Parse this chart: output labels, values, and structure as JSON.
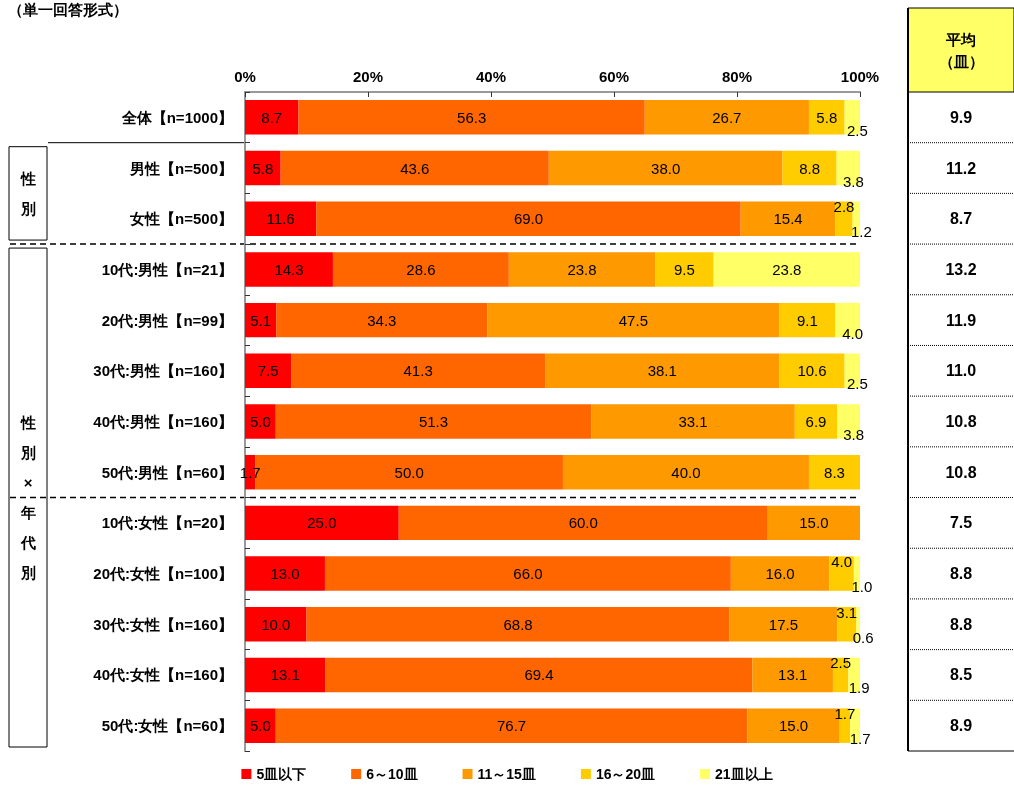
{
  "chart_data": {
    "type": "bar",
    "orientation": "horizontal",
    "stacked": true,
    "grid": false,
    "legend": "bottom",
    "subtitle": "（単一回答形式）",
    "categories": [
      "全体【n=1000】",
      "男性【n=500】",
      "女性【n=500】",
      "10代:男性【n=21】",
      "20代:男性【n=99】",
      "30代:男性【n=160】",
      "40代:男性【n=160】",
      "50代:男性【n=60】",
      "10代:女性【n=20】",
      "20代:女性【n=100】",
      "30代:女性【n=160】",
      "40代:女性【n=160】",
      "50代:女性【n=60】"
    ],
    "xlim": [
      0,
      100
    ],
    "xticks": [
      {
        "value": 0,
        "label": "0%"
      },
      {
        "value": 20,
        "label": "20%"
      },
      {
        "value": 40,
        "label": "40%"
      },
      {
        "value": 60,
        "label": "60%"
      },
      {
        "value": 80,
        "label": "80%"
      },
      {
        "value": 100,
        "label": "100%"
      }
    ],
    "series": [
      {
        "name": "5皿以下",
        "color": "#ff0000",
        "values": [
          8.7,
          5.8,
          11.6,
          14.3,
          5.1,
          7.5,
          5.0,
          1.7,
          25.0,
          13.0,
          10.0,
          13.1,
          5.0
        ],
        "value_labels": [
          "8.7",
          "5.8",
          "11.6",
          "14.3",
          "5.1",
          "7.5",
          "5.0",
          "1.7",
          "25.0",
          "13.0",
          "10.0",
          "13.1",
          "5.0"
        ]
      },
      {
        "name": "6～10皿",
        "color": "#ff6600",
        "values": [
          56.3,
          43.6,
          69.0,
          28.6,
          34.3,
          41.3,
          51.3,
          50.0,
          60.0,
          66.0,
          68.8,
          69.4,
          76.7
        ],
        "value_labels": [
          "56.3",
          "43.6",
          "69.0",
          "28.6",
          "34.3",
          "41.3",
          "51.3",
          "50.0",
          "60.0",
          "66.0",
          "68.8",
          "69.4",
          "76.7"
        ]
      },
      {
        "name": "11～15皿",
        "color": "#ff9900",
        "values": [
          26.7,
          38.0,
          15.4,
          23.8,
          47.5,
          38.1,
          33.1,
          40.0,
          15.0,
          16.0,
          17.5,
          13.1,
          15.0
        ],
        "value_labels": [
          "26.7",
          "38.0",
          "15.4",
          "23.8",
          "47.5",
          "38.1",
          "33.1",
          "40.0",
          "15.0",
          "16.0",
          "17.5",
          "13.1",
          "15.0"
        ]
      },
      {
        "name": "16～20皿",
        "color": "#ffcc00",
        "values": [
          5.8,
          8.8,
          2.8,
          9.5,
          9.1,
          10.6,
          6.9,
          8.3,
          null,
          4.0,
          3.1,
          2.5,
          1.7
        ],
        "value_labels": [
          "5.8",
          "8.8",
          "2.8",
          "9.5",
          "9.1",
          "10.6",
          "6.9",
          "8.3",
          null,
          "4.0",
          "3.1",
          "2.5",
          "1.7"
        ]
      },
      {
        "name": "21皿以上",
        "color": "#ffff66",
        "values": [
          2.5,
          3.8,
          1.2,
          23.8,
          4.0,
          2.5,
          3.8,
          null,
          null,
          1.0,
          0.6,
          1.9,
          1.7
        ],
        "value_labels": [
          "2.5",
          "3.8",
          "1.2",
          "23.8",
          "4.0",
          "2.5",
          "3.8",
          null,
          null,
          "1.0",
          "0.6",
          "1.9",
          "1.7"
        ]
      }
    ],
    "annotations": [
      "性別",
      "性別×年代別",
      "平均",
      "（皿）",
      "9.9",
      "11.2",
      "8.7",
      "13.2",
      "11.9",
      "11.0",
      "10.8",
      "10.8",
      "7.5",
      "8.8",
      "8.8",
      "8.5",
      "8.9"
    ]
  }
}
